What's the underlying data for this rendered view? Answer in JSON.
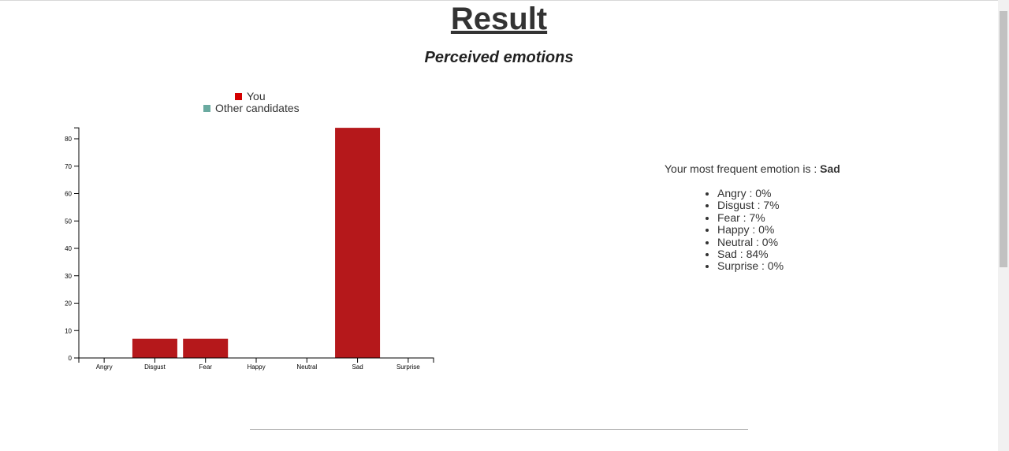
{
  "header": {
    "title": "Result",
    "subtitle": "Perceived emotions"
  },
  "chart_data": {
    "type": "bar",
    "categories": [
      "Angry",
      "Disgust",
      "Fear",
      "Happy",
      "Neutral",
      "Sad",
      "Surprise"
    ],
    "series": [
      {
        "name": "You",
        "color": "#b5181b",
        "legend_color": "#d40000",
        "values": [
          0,
          7,
          7,
          0,
          0,
          84,
          0
        ]
      },
      {
        "name": "Other candidates",
        "color": "#6aaaa0",
        "values": [
          0,
          0,
          0,
          0,
          0,
          0,
          0
        ]
      }
    ],
    "yticks": [
      0,
      10,
      20,
      30,
      40,
      50,
      60,
      70,
      80
    ],
    "ylim": [
      0,
      84
    ],
    "legend_position": "top-center",
    "grid": false
  },
  "summary": {
    "prefix": "Your most frequent emotion is : ",
    "top_emotion": "Sad",
    "items": [
      "Angry : 0%",
      "Disgust : 7%",
      "Fear : 7%",
      "Happy : 0%",
      "Neutral : 0%",
      "Sad : 84%",
      "Surprise : 0%"
    ]
  }
}
